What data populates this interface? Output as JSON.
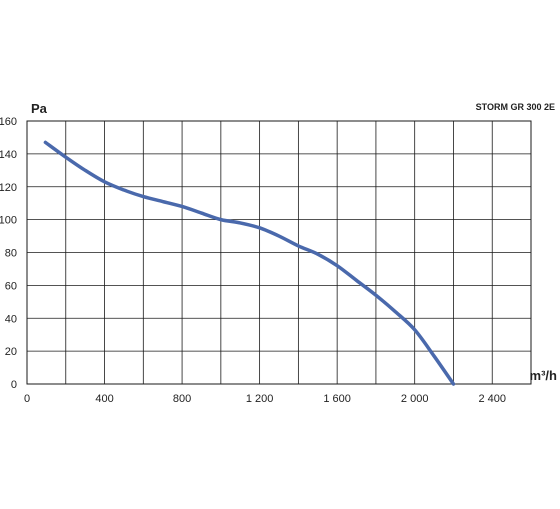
{
  "chart_data": {
    "type": "line",
    "title": "STORM GR 300 2E",
    "xlabel": "m³/h",
    "ylabel": "Pa",
    "xlim": [
      0,
      2600
    ],
    "ylim": [
      0,
      160
    ],
    "x_ticks": [
      0,
      400,
      800,
      1200,
      1600,
      2000,
      2400
    ],
    "x_tick_labels": [
      "0",
      "400",
      "800",
      "1 200",
      "1 600",
      "2 000",
      "2 400"
    ],
    "y_ticks": [
      0,
      20,
      40,
      60,
      80,
      100,
      120,
      140,
      160
    ],
    "y_tick_labels": [
      "0",
      "20",
      "40",
      "60",
      "80",
      "100",
      "120",
      "140",
      "160"
    ],
    "grid": true,
    "series": [
      {
        "color": "#4a69ac",
        "x": [
          95,
          200,
          300,
          400,
          500,
          600,
          700,
          800,
          900,
          1000,
          1100,
          1200,
          1300,
          1400,
          1500,
          1600,
          1700,
          1800,
          1900,
          2000,
          2100,
          2200
        ],
        "y": [
          147,
          138,
          130,
          123,
          118,
          114,
          111,
          108,
          104,
          100,
          98,
          95,
          90,
          84,
          79,
          72,
          63,
          54,
          44,
          33,
          17,
          0
        ]
      }
    ]
  }
}
